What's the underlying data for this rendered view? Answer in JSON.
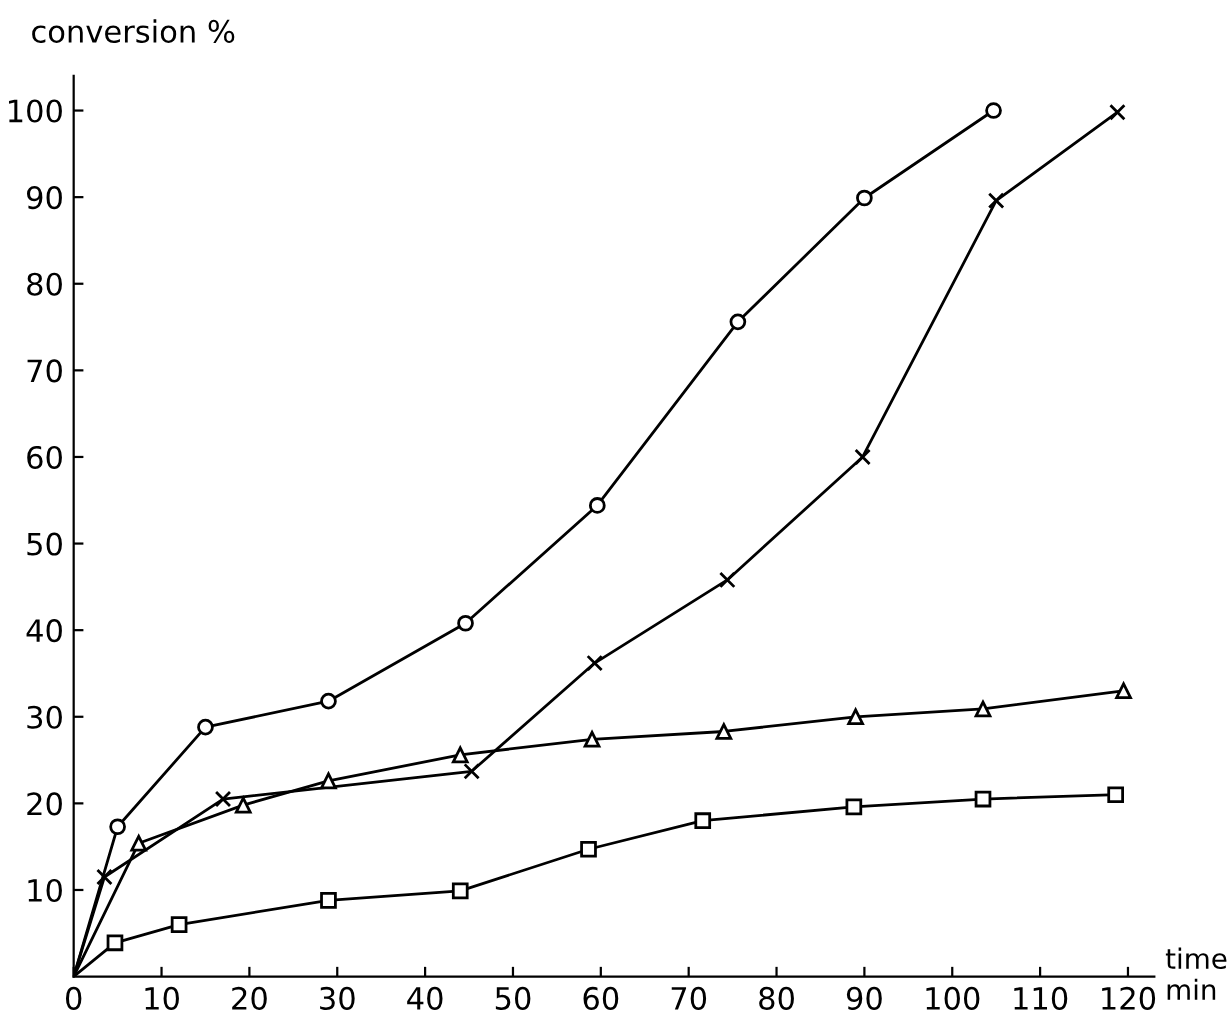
{
  "chart_data": {
    "type": "line",
    "ylabel": "conversion %",
    "xlabel": "time\nmin",
    "xlim": [
      0,
      123
    ],
    "ylim": [
      0,
      104
    ],
    "xticks": [
      0,
      10,
      20,
      30,
      40,
      50,
      60,
      70,
      80,
      90,
      100,
      110,
      120
    ],
    "yticks": [
      10,
      20,
      30,
      40,
      50,
      60,
      70,
      80,
      90,
      100
    ],
    "grid": false,
    "line_style": "solid",
    "series": [
      {
        "color": "#000000",
        "marker": "circle",
        "x": [
          0,
          5,
          15,
          29,
          44.6,
          59.6,
          75.6,
          90,
          104.7
        ],
        "values": [
          0,
          17.3,
          28.8,
          31.8,
          40.8,
          54.4,
          75.6,
          89.9,
          100
        ]
      },
      {
        "color": "#000000",
        "marker": "cross",
        "x": [
          0,
          3.5,
          17,
          45.3,
          59.3,
          74.4,
          89.8,
          105,
          118.8
        ],
        "values": [
          0,
          11.5,
          20.5,
          23.7,
          36.2,
          45.8,
          60,
          89.6,
          99.8
        ]
      },
      {
        "color": "#000000",
        "marker": "triangle",
        "x": [
          0,
          7.4,
          19.3,
          29,
          44,
          59,
          74,
          89,
          103.5,
          119.5
        ],
        "values": [
          0,
          15.4,
          19.8,
          22.6,
          25.6,
          27.4,
          28.3,
          30,
          30.9,
          33
        ]
      },
      {
        "color": "#000000",
        "marker": "square",
        "x": [
          0,
          4.7,
          12,
          29,
          44,
          58.6,
          71.6,
          88.8,
          103.5,
          118.6
        ],
        "values": [
          0,
          3.9,
          6,
          8.8,
          9.9,
          14.7,
          18,
          19.6,
          20.5,
          21
        ]
      }
    ]
  }
}
